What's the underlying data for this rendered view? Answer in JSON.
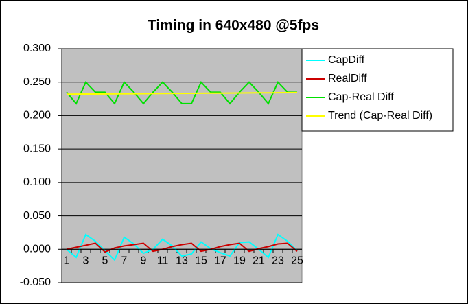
{
  "chart_data": {
    "type": "line",
    "title": "Timing in 640x480 @5fps",
    "categories": [
      "1",
      null,
      "3",
      null,
      "5",
      null,
      "7",
      null,
      "9",
      null,
      "11",
      null,
      "13",
      null,
      "15",
      null,
      "17",
      null,
      "19",
      null,
      "21",
      null,
      "23",
      null,
      "25"
    ],
    "series": [
      {
        "name": "CapDiff",
        "color": "#00ffff",
        "values": [
          0.0,
          -0.012,
          0.022,
          0.012,
          -0.002,
          -0.016,
          0.018,
          0.008,
          -0.006,
          0.0,
          0.015,
          0.005,
          -0.01,
          -0.007,
          0.011,
          0.001,
          -0.005,
          -0.01,
          0.01,
          0.011,
          0.0,
          -0.012,
          0.022,
          0.012,
          -0.002
        ]
      },
      {
        "name": "RealDiff",
        "color": "#cc0000",
        "values": [
          0.0,
          0.003,
          0.006,
          0.009,
          -0.004,
          0.002,
          0.005,
          0.007,
          0.009,
          -0.003,
          0.0,
          0.004,
          0.007,
          0.009,
          -0.003,
          0.0,
          0.004,
          0.007,
          0.009,
          -0.003,
          0.001,
          0.004,
          0.008,
          0.009,
          -0.003
        ]
      },
      {
        "name": "Cap-Real Diff",
        "color": "#00e000",
        "values": [
          0.235,
          0.218,
          0.25,
          0.235,
          0.235,
          0.218,
          0.25,
          0.235,
          0.218,
          0.235,
          0.25,
          0.235,
          0.218,
          0.218,
          0.25,
          0.235,
          0.235,
          0.218,
          0.235,
          0.25,
          0.235,
          0.218,
          0.25,
          0.235,
          0.235
        ]
      },
      {
        "name": "Trend (Cap-Real Diff)",
        "color": "#ffff00",
        "values": [
          0.232,
          0.2321,
          0.2322,
          0.2323,
          0.2324,
          0.2325,
          0.2326,
          0.2327,
          0.2328,
          0.2329,
          0.233,
          0.2331,
          0.2332,
          0.2333,
          0.2334,
          0.2335,
          0.2336,
          0.2337,
          0.2338,
          0.2339,
          0.234,
          0.2341,
          0.2342,
          0.2343,
          0.2344
        ]
      }
    ],
    "ylim": [
      -0.05,
      0.3
    ],
    "yticks": [
      {
        "value": -0.05,
        "label": "-0.050"
      },
      {
        "value": 0,
        "label": "0.000"
      },
      {
        "value": 0.05,
        "label": "0.050"
      },
      {
        "value": 0.1,
        "label": "0.100"
      },
      {
        "value": 0.15,
        "label": "0.150"
      },
      {
        "value": 0.2,
        "label": "0.200"
      },
      {
        "value": 0.25,
        "label": "0.250"
      },
      {
        "value": 0.3,
        "label": "0.300"
      }
    ],
    "grid": true,
    "legend": "right",
    "plot_background": "#c0c0c0"
  }
}
